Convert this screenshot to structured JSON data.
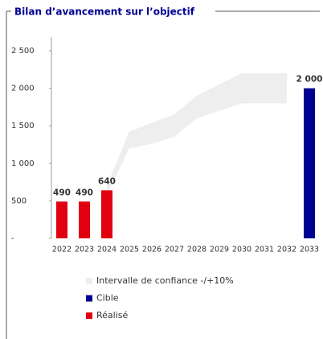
{
  "chart_data": {
    "type": "bar",
    "title": "Bilan d’avancement sur l’objectif",
    "categories": [
      "2022",
      "2023",
      "2024",
      "2025",
      "2026",
      "2027",
      "2028",
      "2029",
      "2030",
      "2031",
      "2032",
      "2033"
    ],
    "series": [
      {
        "name": "Intervalle de confiance -/+10%",
        "type": "band",
        "color": "#eeeeee",
        "lower": [
          null,
          null,
          576,
          1200,
          1260,
          1350,
          1600,
          1700,
          1800,
          1800,
          1800,
          null
        ],
        "upper": [
          null,
          null,
          704,
          1420,
          1540,
          1650,
          1900,
          2050,
          2200,
          2200,
          2200,
          null
        ]
      },
      {
        "name": "Cible",
        "color": "#000091",
        "values": [
          null,
          null,
          null,
          null,
          null,
          null,
          null,
          null,
          null,
          null,
          null,
          2000
        ],
        "value_labels": [
          null,
          null,
          null,
          null,
          null,
          null,
          null,
          null,
          null,
          null,
          null,
          "2 000"
        ]
      },
      {
        "name": "Réalisé",
        "color": "#e1000f",
        "values": [
          490,
          490,
          640,
          null,
          null,
          null,
          null,
          null,
          null,
          null,
          null,
          null
        ]
      }
    ],
    "ylim": [
      0,
      2700
    ],
    "yticks": [
      {
        "value": 0,
        "label": "-"
      },
      500,
      {
        "value": 1000,
        "label": "1 000"
      },
      {
        "value": 1500,
        "label": "1 500"
      },
      {
        "value": 2000,
        "label": "2 000"
      },
      {
        "value": 2500,
        "label": "2 500"
      }
    ]
  }
}
